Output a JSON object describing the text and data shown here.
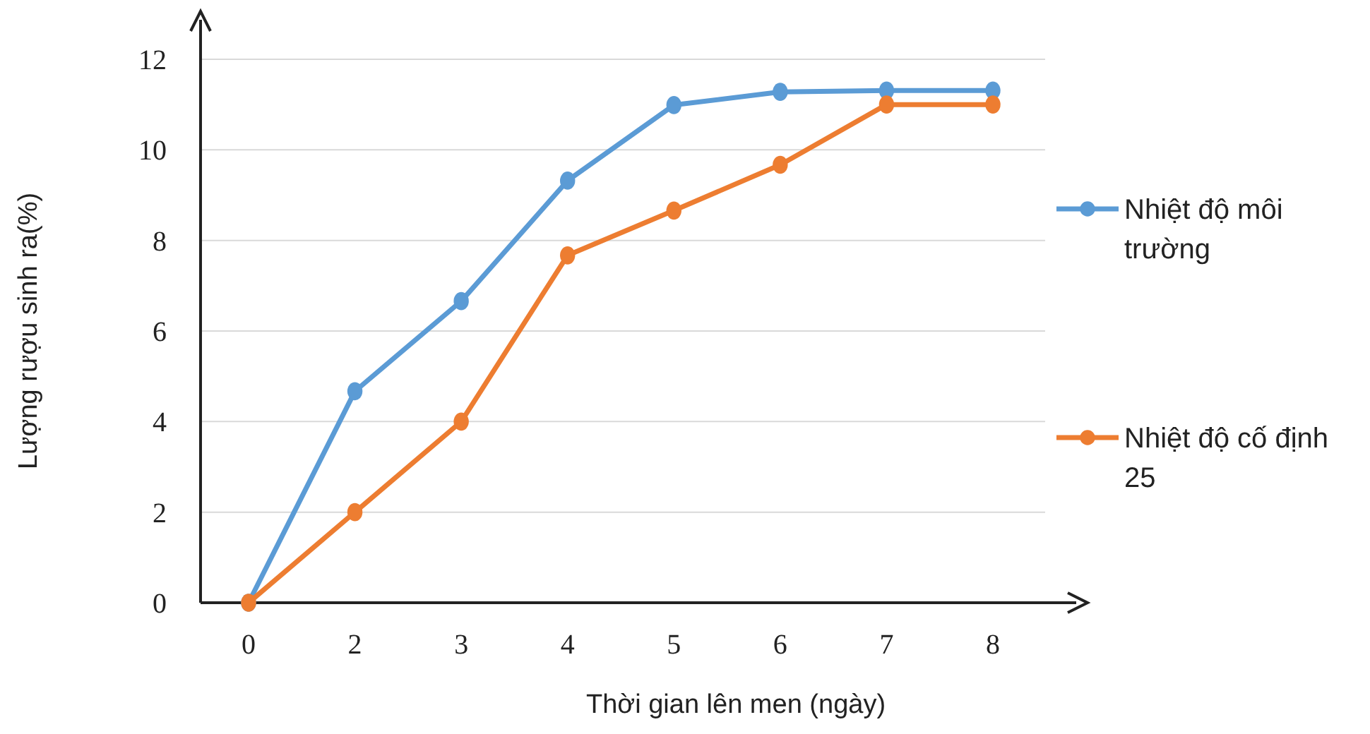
{
  "chart_data": {
    "type": "line",
    "xlabel": "Thời gian lên men (ngày)",
    "ylabel": "Lượng rượu sinh ra(%)",
    "categories": [
      "0",
      "2",
      "3",
      "4",
      "5",
      "6",
      "7",
      "8"
    ],
    "ylim": [
      0,
      12
    ],
    "yticks": [
      0,
      2,
      4,
      6,
      8,
      10,
      12
    ],
    "grid": "y",
    "legend": "right",
    "marker": "circle",
    "line_style": "solid",
    "series": [
      {
        "name": "Nhiệt độ môi trường",
        "color": "#5b9bd5",
        "values": [
          0,
          4.67,
          6.66,
          9.32,
          10.99,
          11.28,
          11.31,
          11.31
        ]
      },
      {
        "name": "Nhiệt độ cố định 25",
        "color": "#ed7d31",
        "values": [
          0,
          2.0,
          4.0,
          7.67,
          8.66,
          9.67,
          11.0,
          11.0
        ]
      }
    ]
  }
}
